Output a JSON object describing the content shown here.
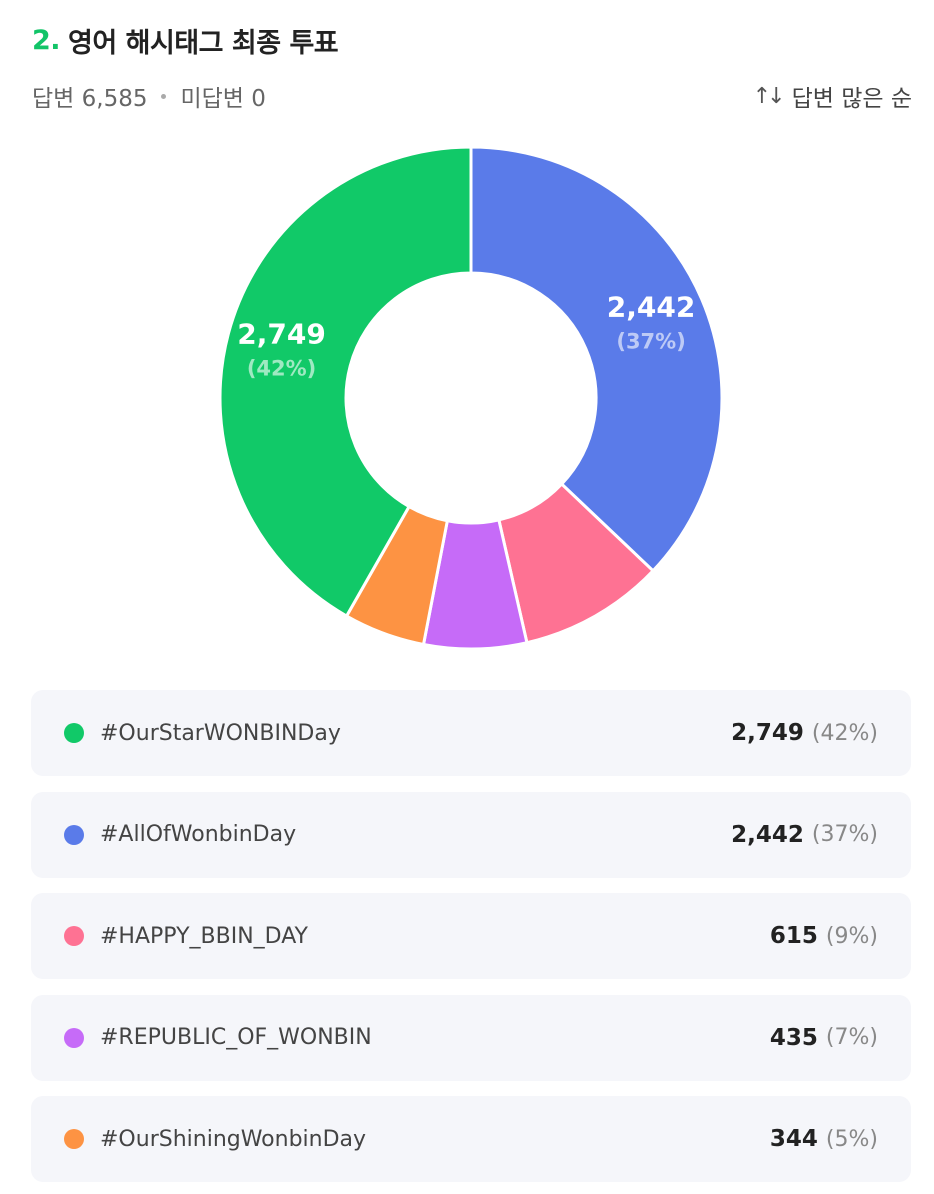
{
  "header": {
    "number": "2.",
    "title": "영어 해시태그 최종 투표"
  },
  "meta": {
    "answered": "답변 6,585",
    "unanswered": "미답변 0",
    "sort_label": "답변 많은 순",
    "sort_icon": "sort-updown-icon"
  },
  "chart_data": {
    "type": "pie",
    "donut": true,
    "start_angle_deg": 0,
    "direction": "clockwise",
    "slices": [
      {
        "label": "#AllOfWonbinDay",
        "value": 2442,
        "percent": 37,
        "color": "#5a7be9",
        "data_label": "2,442",
        "data_pct": "(37%)"
      },
      {
        "label": "#HAPPY_BBIN_DAY",
        "value": 615,
        "percent": 9,
        "color": "#fe7293",
        "data_label": "",
        "data_pct": ""
      },
      {
        "label": "#REPUBLIC_OF_WONBIN",
        "value": 435,
        "percent": 7,
        "color": "#c66bf8",
        "data_label": "",
        "data_pct": ""
      },
      {
        "label": "#OurShiningWonbinDay",
        "value": 344,
        "percent": 5,
        "color": "#fd9343",
        "data_label": "",
        "data_pct": ""
      },
      {
        "label": "#OurStarWONBINDay",
        "value": 2749,
        "percent": 42,
        "color": "#11c968",
        "data_label": "2,749",
        "data_pct": "(42%)"
      }
    ]
  },
  "legend": [
    {
      "label": "#OurStarWONBINDay",
      "count": "2,749",
      "pct": "(42%)",
      "color": "#11c968"
    },
    {
      "label": "#AllOfWonbinDay",
      "count": "2,442",
      "pct": "(37%)",
      "color": "#5a7be9"
    },
    {
      "label": "#HAPPY_BBIN_DAY",
      "count": "615",
      "pct": "(9%)",
      "color": "#fe7293"
    },
    {
      "label": "#REPUBLIC_OF_WONBIN",
      "count": "435",
      "pct": "(7%)",
      "color": "#c66bf8"
    },
    {
      "label": "#OurShiningWonbinDay",
      "count": "344",
      "pct": "(5%)",
      "color": "#fd9343"
    }
  ]
}
